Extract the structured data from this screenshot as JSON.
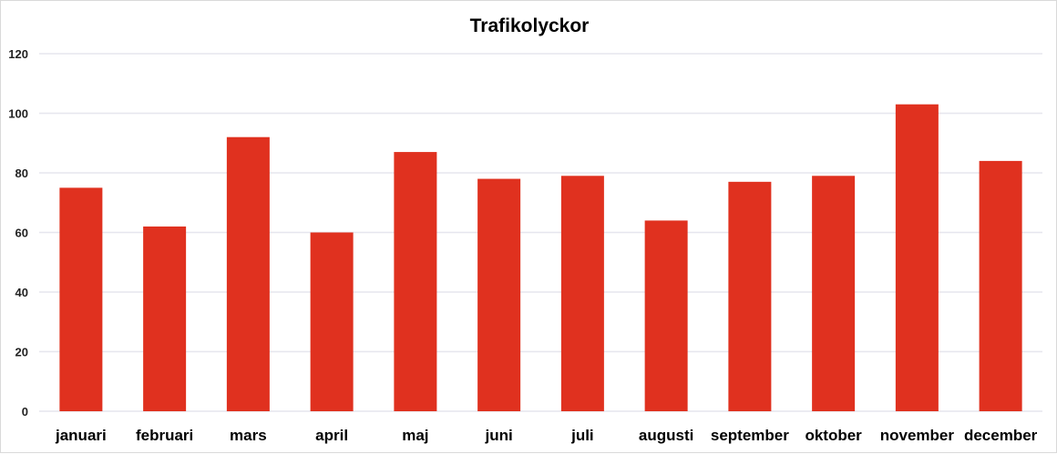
{
  "chart_data": {
    "type": "bar",
    "title": "Trafikolyckor",
    "xlabel": "",
    "ylabel": "",
    "categories": [
      "januari",
      "februari",
      "mars",
      "april",
      "maj",
      "juni",
      "juli",
      "augusti",
      "september",
      "oktober",
      "november",
      "december"
    ],
    "values": [
      75,
      62,
      92,
      60,
      87,
      78,
      79,
      64,
      77,
      79,
      103,
      84
    ],
    "ylim": [
      0,
      120
    ],
    "yticks": [
      "0",
      "20",
      "40",
      "60",
      "80",
      "100",
      "120"
    ],
    "grid": true,
    "legend": "none",
    "bar_color": "#E0311F",
    "grid_color": "#E6E6EE"
  }
}
